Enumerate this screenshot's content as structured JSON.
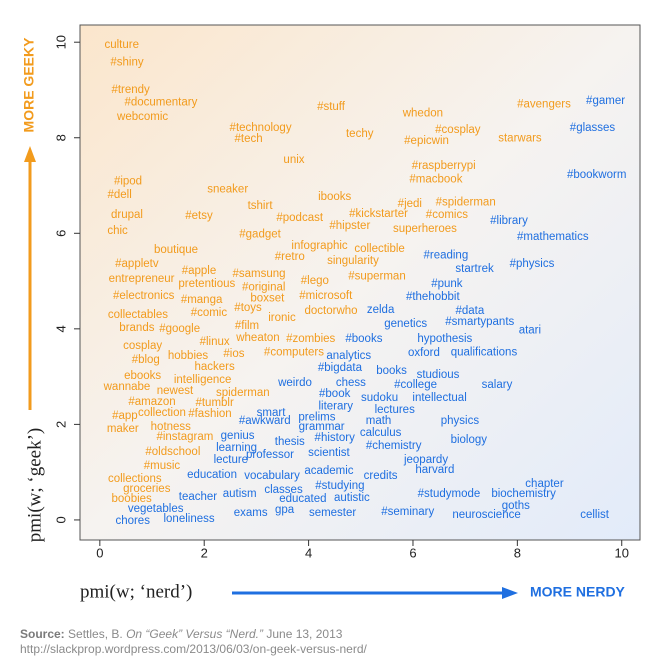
{
  "chart_data": {
    "type": "scatter",
    "xlabel": "pmi(w; ‘nerd’)",
    "ylabel": "pmi(w; ‘geek’)",
    "annotations": {
      "geeky": "MORE GEEKY",
      "nerdy": "MORE NERDY"
    },
    "xlim": [
      -0.38,
      10.35
    ],
    "ylim": [
      -0.42,
      10.36
    ],
    "xticks": [
      0,
      2,
      4,
      6,
      8,
      10
    ],
    "yticks": [
      0,
      2,
      4,
      6,
      8,
      10
    ],
    "series": [
      {
        "color": "#f29b1d",
        "labels": [
          "culture",
          "#shiny",
          "#trendy",
          "#documentary",
          "webcomic",
          "#stuff",
          "whedon",
          "#avengers",
          "#technology",
          "#tech",
          "techy",
          "#cosplay",
          "#epicwin",
          "starwars",
          "unix",
          "#raspberrypi",
          "#macbook",
          "#ipod",
          "#dell",
          "sneaker",
          "ibooks",
          "tshirt",
          "#jedi",
          "#spiderman",
          "drupal",
          "#etsy",
          "#podcast",
          "#kickstarter",
          "#comics",
          "chic",
          "#gadget",
          "#hipster",
          "superheroes",
          "infographic",
          "boutique",
          "collectible",
          "#retro",
          "singularity",
          "#appletv",
          "#apple",
          "#samsung",
          "entrepreneur",
          "pretentious",
          "#superman",
          "#lego",
          "#original",
          "#electronics",
          "#manga",
          "boxset",
          "#microsoft",
          "#toys",
          "#comic",
          "collectables",
          "ironic",
          "doctorwho",
          "brands",
          "#google",
          "#film",
          "#linux",
          "wheaton",
          "#zombies",
          "cosplay",
          "#ios",
          "#computers",
          "#blog",
          "hobbies",
          "hackers",
          "ebooks",
          "intelligence",
          "newest",
          "wannabe",
          "spiderman",
          "#amazon",
          "#tumblr",
          "#app",
          "collection",
          "#fashion",
          "maker",
          "hotness",
          "#instagram",
          "#oldschool",
          "#music",
          "collections",
          "groceries",
          "boobies"
        ],
        "x": [
          0.42,
          0.52,
          0.59,
          1.17,
          0.82,
          4.43,
          6.19,
          8.51,
          3.08,
          2.85,
          4.98,
          6.86,
          6.26,
          8.05,
          3.72,
          6.59,
          6.44,
          0.54,
          0.38,
          2.45,
          4.5,
          3.07,
          5.94,
          7.01,
          0.52,
          1.9,
          3.83,
          5.34,
          6.65,
          0.34,
          3.07,
          4.79,
          6.23,
          4.21,
          1.46,
          5.36,
          3.64,
          4.85,
          0.71,
          1.9,
          3.05,
          0.8,
          2.05,
          5.31,
          4.12,
          3.14,
          0.84,
          1.95,
          3.21,
          4.33,
          2.84,
          2.09,
          0.73,
          3.49,
          4.43,
          0.71,
          1.53,
          2.82,
          2.2,
          3.03,
          4.04,
          0.82,
          2.57,
          3.72,
          0.88,
          1.69,
          2.2,
          0.82,
          1.97,
          1.44,
          0.52,
          2.74,
          1.0,
          2.2,
          0.48,
          1.19,
          2.11,
          0.44,
          1.36,
          1.63,
          1.4,
          1.19,
          0.67,
          0.9,
          0.61
        ],
        "values": [
          9.94,
          9.58,
          9.0,
          8.74,
          8.43,
          8.64,
          8.51,
          8.7,
          8.2,
          7.97,
          8.08,
          8.16,
          7.93,
          7.99,
          7.53,
          7.41,
          7.13,
          7.09,
          6.8,
          6.92,
          6.76,
          6.57,
          6.61,
          6.65,
          6.38,
          6.36,
          6.32,
          6.4,
          6.38,
          6.05,
          5.98,
          6.15,
          6.09,
          5.73,
          5.65,
          5.67,
          5.5,
          5.42,
          5.36,
          5.21,
          5.15,
          5.04,
          4.94,
          5.1,
          5.0,
          4.87,
          4.69,
          4.6,
          4.64,
          4.69,
          4.44,
          4.33,
          4.29,
          4.23,
          4.37,
          4.02,
          4.0,
          4.06,
          3.72,
          3.81,
          3.79,
          3.64,
          3.47,
          3.51,
          3.35,
          3.43,
          3.2,
          3.01,
          2.93,
          2.7,
          2.78,
          2.66,
          2.47,
          2.45,
          2.18,
          2.24,
          2.22,
          1.9,
          1.95,
          1.74,
          1.42,
          1.13,
          0.86,
          0.65,
          0.44
        ]
      },
      {
        "color": "#1f6fe0",
        "labels": [
          "#gamer",
          "#glasses",
          "#bookworm",
          "#library",
          "#mathematics",
          "#reading",
          "startrek",
          "#physics",
          "#punk",
          "#thehobbit",
          "zelda",
          "#data",
          "#smartypants",
          "genetics",
          "atari",
          "#books",
          "hypothesis",
          "analytics",
          "oxford",
          "qualifications",
          "#bigdata",
          "books",
          "studious",
          "weirdo",
          "chess",
          "#college",
          "salary",
          "#book",
          "sudoku",
          "intellectual",
          "literary",
          "lectures",
          "smart",
          "prelims",
          "#awkward",
          "math",
          "physics",
          "grammar",
          "calculus",
          "genius",
          "#history",
          "biology",
          "thesis",
          "#chemistry",
          "learning",
          "scientist",
          "professor",
          "lecture",
          "jeopardy",
          "harvard",
          "academic",
          "credits",
          "education",
          "vocabulary",
          "#studying",
          "chapter",
          "classes",
          "autism",
          "teacher",
          "#studymode",
          "biochemistry",
          "educated",
          "autistic",
          "goths",
          "vegetables",
          "exams",
          "gpa",
          "semester",
          "#seminary",
          "neuroscience",
          "cellist",
          "chores",
          "loneliness"
        ],
        "x": [
          9.69,
          9.44,
          9.52,
          7.84,
          8.68,
          6.63,
          7.18,
          8.28,
          6.65,
          6.38,
          5.38,
          7.09,
          7.28,
          5.86,
          8.24,
          5.06,
          6.61,
          4.77,
          6.21,
          7.36,
          4.6,
          5.59,
          6.48,
          3.74,
          4.81,
          6.05,
          7.61,
          4.5,
          5.36,
          6.51,
          4.52,
          5.65,
          3.28,
          4.16,
          3.16,
          5.34,
          6.9,
          4.25,
          5.38,
          2.64,
          4.5,
          7.07,
          3.64,
          5.63,
          2.62,
          4.39,
          3.26,
          2.51,
          6.25,
          6.42,
          4.39,
          5.38,
          2.15,
          3.3,
          4.6,
          8.52,
          3.52,
          2.68,
          1.88,
          6.69,
          8.12,
          3.89,
          4.83,
          7.97,
          1.07,
          2.89,
          3.54,
          4.46,
          5.9,
          7.41,
          9.48,
          0.63,
          1.71
        ],
        "values": [
          8.77,
          8.2,
          7.22,
          6.26,
          5.92,
          5.54,
          5.25,
          5.36,
          4.94,
          4.67,
          4.39,
          4.37,
          4.14,
          4.1,
          3.97,
          3.79,
          3.79,
          3.43,
          3.49,
          3.51,
          3.18,
          3.12,
          3.03,
          2.87,
          2.87,
          2.82,
          2.82,
          2.64,
          2.55,
          2.55,
          2.38,
          2.3,
          2.24,
          2.15,
          2.07,
          2.07,
          2.07,
          1.95,
          1.82,
          1.76,
          1.72,
          1.67,
          1.63,
          1.55,
          1.51,
          1.4,
          1.36,
          1.26,
          1.26,
          1.05,
          1.03,
          0.92,
          0.94,
          0.92,
          0.71,
          0.75,
          0.63,
          0.54,
          0.48,
          0.54,
          0.54,
          0.44,
          0.46,
          0.29,
          0.23,
          0.15,
          0.21,
          0.15,
          0.17,
          0.1,
          0.1,
          -0.02,
          0.02
        ]
      }
    ]
  },
  "source": {
    "label": "Source:",
    "author": "Settles, B.",
    "title": "On “Geek” Versus “Nerd.”",
    "date": "June 13, 2013",
    "url": "http://slackprop.wordpress.com/2013/06/03/on-geek-versus-nerd/"
  }
}
